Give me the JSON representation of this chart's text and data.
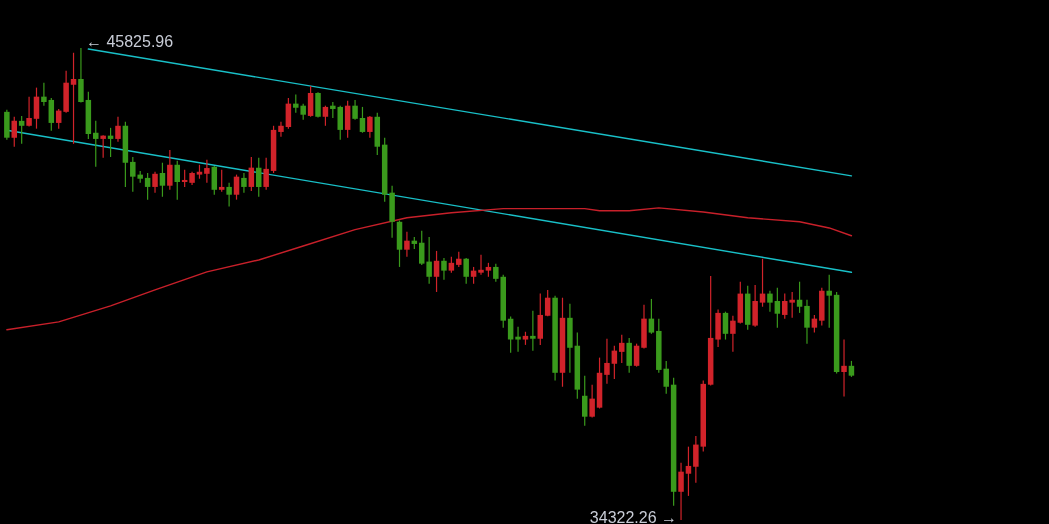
{
  "chart_data": {
    "type": "candlestick",
    "categories": [
      null,
      null,
      null,
      null,
      null,
      null,
      null,
      null,
      null,
      null,
      null,
      null,
      null,
      null,
      null,
      null,
      null,
      null,
      null,
      null,
      null,
      null,
      null,
      null,
      null,
      null,
      null,
      null,
      null,
      null,
      null,
      null,
      null,
      null,
      null,
      null,
      null,
      null,
      null,
      null,
      null,
      null,
      null,
      null,
      null,
      null,
      null,
      null,
      null,
      null,
      null,
      null,
      null,
      null,
      null,
      null,
      null,
      null,
      null,
      null,
      null,
      null,
      null,
      null,
      null,
      null,
      null,
      null,
      null,
      null,
      null,
      null,
      null,
      null,
      null,
      null,
      null,
      null,
      null,
      null,
      null,
      null,
      null,
      null,
      null,
      null,
      null,
      null,
      null,
      null,
      null,
      null,
      null,
      null,
      null,
      null,
      null,
      null,
      null,
      null,
      null,
      null,
      null,
      null,
      null,
      null,
      null,
      null,
      null,
      null,
      null,
      null,
      null,
      null,
      null
    ],
    "ohlc": [
      [
        44270,
        44320,
        43590,
        43640
      ],
      [
        43640,
        44150,
        43420,
        44050
      ],
      [
        44050,
        44170,
        43490,
        43930
      ],
      [
        43930,
        44640,
        43910,
        44120
      ],
      [
        44100,
        44860,
        43860,
        44640
      ],
      [
        44640,
        44980,
        44420,
        44510
      ],
      [
        44560,
        44610,
        43810,
        44000
      ],
      [
        44000,
        44340,
        43860,
        44300
      ],
      [
        44270,
        45270,
        44250,
        44980
      ],
      [
        44930,
        45710,
        43490,
        45070
      ],
      [
        45070,
        45825.96,
        44500,
        44510
      ],
      [
        44560,
        44760,
        43610,
        43730
      ],
      [
        43760,
        44050,
        42930,
        43610
      ],
      [
        43610,
        43700,
        43150,
        43690
      ],
      [
        43690,
        43880,
        43170,
        43610
      ],
      [
        43610,
        44150,
        43540,
        43930
      ],
      [
        43930,
        44030,
        42440,
        43030
      ],
      [
        43050,
        43170,
        42320,
        42690
      ],
      [
        42740,
        42830,
        42540,
        42640
      ],
      [
        42660,
        42780,
        42130,
        42440
      ],
      [
        42440,
        42810,
        42300,
        42760
      ],
      [
        42780,
        43030,
        42200,
        42470
      ],
      [
        42470,
        43340,
        42370,
        42980
      ],
      [
        42980,
        43080,
        42130,
        42560
      ],
      [
        42560,
        42860,
        42440,
        42610
      ],
      [
        42540,
        42810,
        42490,
        42780
      ],
      [
        42740,
        42980,
        42640,
        42810
      ],
      [
        42760,
        43100,
        42540,
        42900
      ],
      [
        42930,
        42950,
        42250,
        42370
      ],
      [
        42370,
        42860,
        42320,
        42440
      ],
      [
        42440,
        42540,
        41960,
        42250
      ],
      [
        42250,
        42740,
        42130,
        42690
      ],
      [
        42660,
        42780,
        42300,
        42440
      ],
      [
        42440,
        43170,
        42340,
        42910
      ],
      [
        42910,
        43150,
        42200,
        42440
      ],
      [
        42440,
        43150,
        42370,
        42880
      ],
      [
        42830,
        43930,
        42780,
        43830
      ],
      [
        43780,
        44030,
        43660,
        43930
      ],
      [
        43900,
        44610,
        43860,
        44470
      ],
      [
        44470,
        44690,
        44250,
        44370
      ],
      [
        44420,
        44470,
        44080,
        44200
      ],
      [
        44170,
        44900,
        44150,
        44730
      ],
      [
        44730,
        44750,
        44130,
        44150
      ],
      [
        44150,
        44420,
        43930,
        44390
      ],
      [
        44420,
        44510,
        44120,
        44340
      ],
      [
        44390,
        44420,
        43590,
        43830
      ],
      [
        43830,
        44540,
        43640,
        44420
      ],
      [
        44420,
        44560,
        44080,
        44100
      ],
      [
        44120,
        44390,
        43760,
        43780
      ],
      [
        43780,
        44170,
        43640,
        44150
      ],
      [
        44150,
        44250,
        43220,
        43420
      ],
      [
        43470,
        43640,
        42080,
        42250
      ],
      [
        42300,
        42470,
        41200,
        41590
      ],
      [
        41590,
        41620,
        40490,
        40910
      ],
      [
        40910,
        41350,
        40740,
        41130
      ],
      [
        41130,
        41220,
        40930,
        41050
      ],
      [
        41080,
        41370,
        40540,
        40570
      ],
      [
        40620,
        41220,
        40080,
        40250
      ],
      [
        40250,
        40880,
        39880,
        40640
      ],
      [
        40640,
        40710,
        40180,
        40400
      ],
      [
        40400,
        40740,
        40350,
        40590
      ],
      [
        40540,
        40860,
        40490,
        40690
      ],
      [
        40690,
        40710,
        40080,
        40250
      ],
      [
        40250,
        40490,
        40080,
        40400
      ],
      [
        40350,
        40790,
        40300,
        40420
      ],
      [
        40400,
        40590,
        40250,
        40490
      ],
      [
        40490,
        40570,
        40130,
        40200
      ],
      [
        40250,
        40300,
        39010,
        39180
      ],
      [
        39230,
        39280,
        38400,
        38720
      ],
      [
        38790,
        39030,
        38420,
        38720
      ],
      [
        38720,
        38910,
        38590,
        38810
      ],
      [
        38810,
        39420,
        38450,
        38740
      ],
      [
        38740,
        39840,
        38590,
        39320
      ],
      [
        39300,
        39930,
        39290,
        39740
      ],
      [
        39740,
        39790,
        37720,
        37910
      ],
      [
        37910,
        39740,
        37570,
        39250
      ],
      [
        39250,
        39590,
        37910,
        38520
      ],
      [
        38570,
        38890,
        37280,
        37500
      ],
      [
        37350,
        37840,
        36620,
        36840
      ],
      [
        36840,
        37620,
        36820,
        37280
      ],
      [
        37060,
        38280,
        37040,
        37910
      ],
      [
        37860,
        38740,
        37640,
        38150
      ],
      [
        38130,
        38570,
        37760,
        38450
      ],
      [
        38420,
        38840,
        38150,
        38640
      ],
      [
        38640,
        38760,
        37910,
        38080
      ],
      [
        38080,
        38620,
        38060,
        38570
      ],
      [
        38520,
        39570,
        38500,
        39230
      ],
      [
        39230,
        39710,
        38860,
        38890
      ],
      [
        38930,
        39230,
        37910,
        37980
      ],
      [
        38010,
        38200,
        37400,
        37570
      ],
      [
        37620,
        37790,
        34670,
        35010
      ],
      [
        35010,
        35720,
        34322.26,
        35500
      ],
      [
        35450,
        36110,
        34910,
        35640
      ],
      [
        35620,
        36370,
        35230,
        36160
      ],
      [
        36110,
        37720,
        35990,
        37640
      ],
      [
        37620,
        40270,
        37600,
        38760
      ],
      [
        38720,
        39450,
        38540,
        39370
      ],
      [
        39370,
        39400,
        38720,
        38860
      ],
      [
        38860,
        39300,
        38420,
        39180
      ],
      [
        39130,
        40130,
        39110,
        39840
      ],
      [
        39840,
        40030,
        38960,
        39080
      ],
      [
        39060,
        40050,
        39030,
        39660
      ],
      [
        39620,
        40690,
        39520,
        39840
      ],
      [
        39840,
        39910,
        39400,
        39620
      ],
      [
        39660,
        39980,
        39010,
        39350
      ],
      [
        39320,
        39840,
        39230,
        39660
      ],
      [
        39620,
        39880,
        39250,
        39690
      ],
      [
        39690,
        40130,
        39370,
        39520
      ],
      [
        39540,
        39690,
        38620,
        39010
      ],
      [
        39010,
        39320,
        38890,
        39230
      ],
      [
        39180,
        39980,
        39060,
        39910
      ],
      [
        39910,
        40300,
        39010,
        39790
      ],
      [
        39810,
        39880,
        37890,
        37930
      ],
      [
        37930,
        38720,
        37330,
        38080
      ],
      [
        38080,
        38200,
        37810,
        37840
      ]
    ],
    "colors": [
      "#3a9a1c",
      "#d1232a",
      "#3a9a1c",
      "#d1232a",
      "#d1232a",
      "#3a9a1c",
      "#3a9a1c",
      "#d1232a",
      "#d1232a",
      "#d1232a",
      "#3a9a1c",
      "#3a9a1c",
      "#3a9a1c",
      "#d1232a",
      "#3a9a1c",
      "#d1232a",
      "#3a9a1c",
      "#3a9a1c",
      "#3a9a1c",
      "#3a9a1c",
      "#d1232a",
      "#3a9a1c",
      "#d1232a",
      "#3a9a1c",
      "#d1232a",
      "#d1232a",
      "#d1232a",
      "#d1232a",
      "#3a9a1c",
      "#d1232a",
      "#3a9a1c",
      "#d1232a",
      "#3a9a1c",
      "#d1232a",
      "#3a9a1c",
      "#d1232a",
      "#d1232a",
      "#d1232a",
      "#d1232a",
      "#3a9a1c",
      "#3a9a1c",
      "#d1232a",
      "#3a9a1c",
      "#d1232a",
      "#3a9a1c",
      "#3a9a1c",
      "#d1232a",
      "#3a9a1c",
      "#3a9a1c",
      "#d1232a",
      "#3a9a1c",
      "#3a9a1c",
      "#3a9a1c",
      "#3a9a1c",
      "#d1232a",
      "#3a9a1c",
      "#3a9a1c",
      "#3a9a1c",
      "#d1232a",
      "#3a9a1c",
      "#d1232a",
      "#d1232a",
      "#3a9a1c",
      "#d1232a",
      "#d1232a",
      "#d1232a",
      "#3a9a1c",
      "#3a9a1c",
      "#3a9a1c",
      "#3a9a1c",
      "#d1232a",
      "#3a9a1c",
      "#d1232a",
      "#d1232a",
      "#3a9a1c",
      "#d1232a",
      "#3a9a1c",
      "#3a9a1c",
      "#3a9a1c",
      "#d1232a",
      "#d1232a",
      "#d1232a",
      "#d1232a",
      "#d1232a",
      "#3a9a1c",
      "#d1232a",
      "#d1232a",
      "#3a9a1c",
      "#3a9a1c",
      "#3a9a1c",
      "#3a9a1c",
      "#d1232a",
      "#d1232a",
      "#d1232a",
      "#d1232a",
      "#d1232a",
      "#d1232a",
      "#3a9a1c",
      "#d1232a",
      "#d1232a",
      "#3a9a1c",
      "#d1232a",
      "#d1232a",
      "#3a9a1c",
      "#3a9a1c",
      "#d1232a",
      "#d1232a",
      "#3a9a1c",
      "#3a9a1c",
      "#d1232a",
      "#d1232a",
      "#3a9a1c",
      "#3a9a1c",
      "#d1232a",
      "#3a9a1c"
    ],
    "series": [
      {
        "type": "line",
        "color": "#19c0c8",
        "values": [
          null,
          null,
          null,
          null,
          null,
          null,
          null,
          null,
          null,
          null,
          null,
          45800,
          null,
          null,
          null,
          null,
          null,
          null,
          null,
          null,
          null,
          null,
          null,
          null,
          null,
          null,
          null,
          null,
          null,
          null,
          null,
          null,
          null,
          null,
          null,
          null,
          null,
          null,
          null,
          null,
          null,
          null,
          null,
          null,
          null,
          null,
          null,
          null,
          null,
          null,
          null,
          null,
          null,
          null,
          null,
          null,
          null,
          null,
          null,
          null,
          null,
          null,
          null,
          null,
          null,
          null,
          null,
          null,
          null,
          null,
          null,
          null,
          null,
          null,
          null,
          null,
          null,
          null,
          null,
          null,
          null,
          null,
          null,
          null,
          null,
          null,
          null,
          null,
          null,
          null,
          null,
          null,
          null,
          null,
          null,
          null,
          null,
          null,
          null,
          null,
          null,
          null,
          null,
          null,
          null,
          null,
          null,
          null,
          null,
          null,
          null,
          null,
          null,
          null,
          42710
        ]
      },
      {
        "type": "line",
        "color": "#19c0c8",
        "values": [
          43820,
          null,
          null,
          null,
          null,
          null,
          null,
          null,
          null,
          null,
          null,
          null,
          null,
          null,
          null,
          null,
          null,
          null,
          null,
          null,
          null,
          null,
          null,
          null,
          null,
          null,
          null,
          null,
          null,
          null,
          null,
          null,
          null,
          null,
          null,
          null,
          null,
          null,
          null,
          null,
          null,
          null,
          null,
          null,
          null,
          null,
          null,
          null,
          null,
          null,
          null,
          null,
          null,
          null,
          null,
          null,
          null,
          null,
          null,
          null,
          null,
          null,
          null,
          null,
          null,
          null,
          null,
          null,
          null,
          null,
          null,
          null,
          null,
          null,
          null,
          null,
          null,
          null,
          null,
          null,
          null,
          null,
          null,
          null,
          null,
          null,
          null,
          null,
          null,
          null,
          null,
          null,
          null,
          null,
          null,
          null,
          null,
          null,
          null,
          null,
          null,
          null,
          null,
          null,
          null,
          null,
          null,
          null,
          null,
          null,
          null,
          null,
          null,
          null,
          40360
        ]
      },
      {
        "type": "line",
        "color": "#c8202a",
        "values": [
          38960,
          null,
          null,
          null,
          null,
          null,
          null,
          39150,
          null,
          null,
          null,
          null,
          null,
          null,
          39540,
          null,
          null,
          null,
          null,
          null,
          39930,
          null,
          null,
          null,
          null,
          null,
          null,
          40370,
          null,
          null,
          null,
          null,
          null,
          null,
          40660,
          null,
          null,
          null,
          null,
          null,
          41000,
          null,
          null,
          null,
          null,
          null,
          null,
          41400,
          null,
          null,
          null,
          null,
          null,
          null,
          41690,
          null,
          null,
          null,
          null,
          null,
          41810,
          null,
          null,
          null,
          null,
          null,
          null,
          41910,
          null,
          null,
          null,
          null,
          null,
          null,
          null,
          null,
          null,
          null,
          41910,
          null,
          41860,
          null,
          null,
          null,
          41860,
          null,
          null,
          null,
          41930,
          null,
          null,
          null,
          null,
          null,
          41830,
          null,
          null,
          null,
          null,
          null,
          41690,
          null,
          null,
          null,
          null,
          null,
          null,
          41590,
          null,
          null,
          null,
          41440,
          null,
          null,
          41250
        ]
      }
    ],
    "annotations": [
      "← 45825.96",
      "34322.26 →"
    ]
  }
}
